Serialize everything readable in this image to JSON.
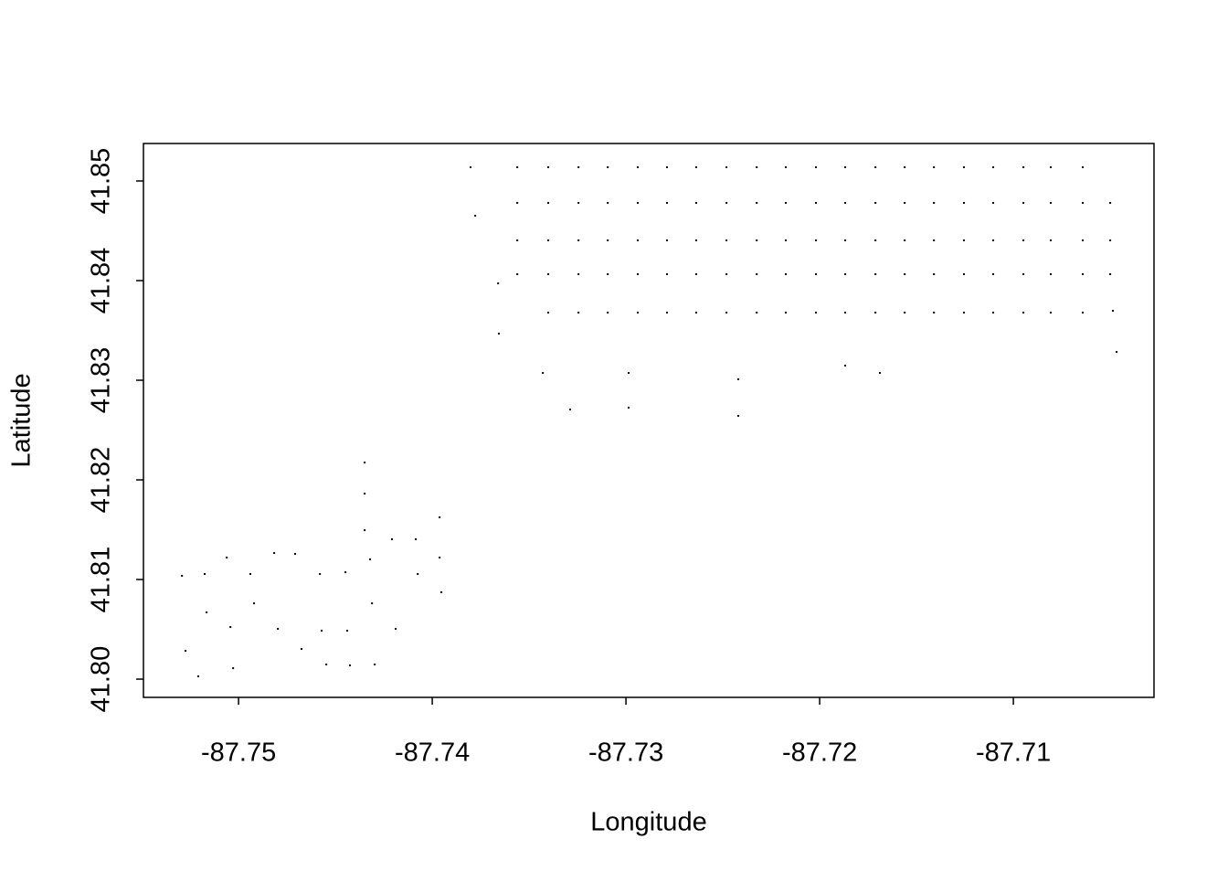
{
  "chart_data": {
    "type": "scatter",
    "xlabel": "Longitude",
    "ylabel": "Latitude",
    "color": "#000000",
    "xlim": [
      -87.75491,
      -87.70274
    ],
    "ylim": [
      41.79817,
      41.85376
    ],
    "xticks": [
      -87.75,
      -87.74,
      -87.73,
      -87.72,
      -87.71
    ],
    "yticks": [
      {
        "value": 41.8,
        "label": "41.80"
      },
      41.81,
      41.82,
      41.83,
      41.84,
      41.85
    ],
    "x": [
      -87.73561,
      -87.73401,
      -87.73245,
      -87.73094,
      -87.72939,
      -87.72788,
      -87.72637,
      -87.72481,
      -87.72325,
      -87.72175,
      -87.72019,
      -87.71868,
      -87.71712,
      -87.71561,
      -87.7141,
      -87.71255,
      -87.71104,
      -87.70948,
      -87.70807,
      -87.70642,
      -87.73561,
      -87.73401,
      -87.73245,
      -87.73094,
      -87.72939,
      -87.72788,
      -87.72637,
      -87.72481,
      -87.72325,
      -87.72175,
      -87.72019,
      -87.71868,
      -87.71712,
      -87.71561,
      -87.7141,
      -87.71255,
      -87.71104,
      -87.70948,
      -87.70807,
      -87.70642,
      -87.705,
      -87.73561,
      -87.73401,
      -87.73245,
      -87.73094,
      -87.72939,
      -87.72788,
      -87.72637,
      -87.72481,
      -87.72325,
      -87.72175,
      -87.72019,
      -87.71868,
      -87.71712,
      -87.71561,
      -87.7141,
      -87.71255,
      -87.71104,
      -87.70948,
      -87.70807,
      -87.70642,
      -87.705,
      -87.73561,
      -87.73401,
      -87.73245,
      -87.73094,
      -87.72939,
      -87.72788,
      -87.72637,
      -87.72481,
      -87.72325,
      -87.72175,
      -87.72019,
      -87.71868,
      -87.71712,
      -87.71561,
      -87.7141,
      -87.71255,
      -87.71104,
      -87.70948,
      -87.70807,
      -87.70642,
      -87.705,
      -87.73401,
      -87.73245,
      -87.73094,
      -87.72939,
      -87.72788,
      -87.72637,
      -87.72481,
      -87.72325,
      -87.72175,
      -87.72019,
      -87.71868,
      -87.71712,
      -87.71561,
      -87.7141,
      -87.71255,
      -87.71104,
      -87.70948,
      -87.70807,
      -87.70642,
      -87.73802,
      -87.73778,
      -87.7366,
      -87.73656,
      -87.73429,
      -87.73288,
      -87.72986,
      -87.72986,
      -87.7242,
      -87.7242,
      -87.71868,
      -87.71689,
      -87.70467,
      -87.70486,
      -87.75292,
      -87.75274,
      -87.75208,
      -87.75028,
      -87.75061,
      -87.74816,
      -87.74708,
      -87.74547,
      -87.74425,
      -87.74297,
      -87.74349,
      -87.74349,
      -87.74349,
      -87.74208,
      -87.74085,
      -87.73962,
      -87.73962,
      -87.73953,
      -87.74075,
      -87.74189,
      -87.74311,
      -87.74439,
      -87.74571,
      -87.74675,
      -87.74797,
      -87.7492,
      -87.75042,
      -87.75165,
      -87.75175,
      -87.74939,
      -87.7458,
      -87.74448,
      -87.74321
    ],
    "values": [
      41.85138,
      41.85138,
      41.85138,
      41.85138,
      41.85138,
      41.85138,
      41.85138,
      41.85138,
      41.85138,
      41.85138,
      41.85138,
      41.85138,
      41.85138,
      41.85138,
      41.85138,
      41.85138,
      41.85138,
      41.85138,
      41.85138,
      41.85138,
      41.8478,
      41.8478,
      41.8478,
      41.8478,
      41.8478,
      41.8478,
      41.8478,
      41.8478,
      41.8478,
      41.8478,
      41.8478,
      41.8478,
      41.8478,
      41.8478,
      41.8478,
      41.8478,
      41.8478,
      41.8478,
      41.8478,
      41.8478,
      41.8478,
      41.84404,
      41.84404,
      41.84404,
      41.84404,
      41.84404,
      41.84404,
      41.84404,
      41.84404,
      41.84404,
      41.84404,
      41.84404,
      41.84404,
      41.84404,
      41.84404,
      41.84404,
      41.84404,
      41.84404,
      41.84404,
      41.84404,
      41.84404,
      41.84404,
      41.84064,
      41.84064,
      41.84064,
      41.84064,
      41.84064,
      41.84064,
      41.84064,
      41.84064,
      41.84064,
      41.84064,
      41.84064,
      41.84064,
      41.84064,
      41.84064,
      41.84064,
      41.84064,
      41.84064,
      41.84064,
      41.84064,
      41.84064,
      41.84064,
      41.83679,
      41.83679,
      41.83679,
      41.83679,
      41.83679,
      41.83679,
      41.83679,
      41.83679,
      41.83679,
      41.83679,
      41.83679,
      41.83679,
      41.83679,
      41.83679,
      41.83679,
      41.83679,
      41.83679,
      41.83679,
      41.83679,
      41.85138,
      41.84651,
      41.83972,
      41.83468,
      41.83073,
      41.82706,
      41.83073,
      41.82725,
      41.83009,
      41.82642,
      41.83147,
      41.83073,
      41.83284,
      41.83697,
      41.81037,
      41.80284,
      41.80028,
      41.8011,
      41.8122,
      41.81266,
      41.81257,
      41.80147,
      41.80138,
      41.80147,
      41.82174,
      41.81862,
      41.81495,
      41.81404,
      41.81404,
      41.81624,
      41.8122,
      41.80872,
      41.81055,
      41.80505,
      41.80761,
      41.80486,
      41.80486,
      41.80303,
      41.80505,
      41.80761,
      41.80523,
      41.8067,
      41.81055,
      41.81055,
      41.81055,
      41.81073,
      41.81202
    ]
  }
}
